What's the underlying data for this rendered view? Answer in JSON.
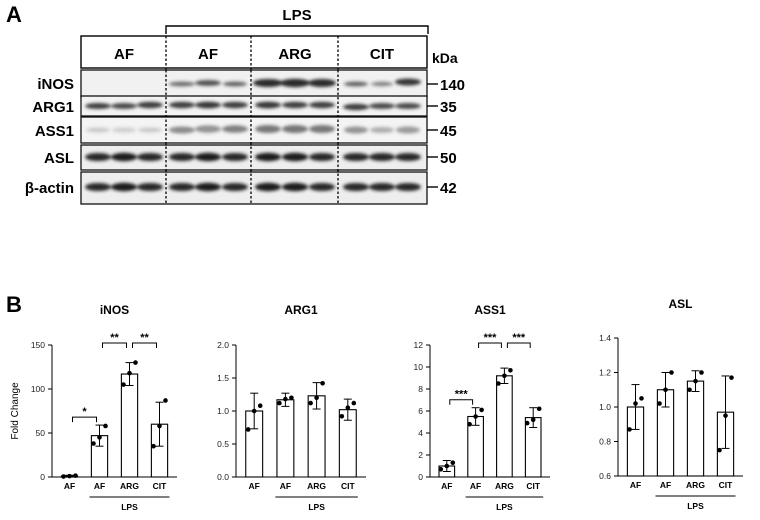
{
  "panel_a": {
    "letter": "A",
    "treatment_label": "LPS",
    "unit_label": "kDa",
    "groups": [
      "AF",
      "AF",
      "ARG",
      "CIT"
    ],
    "proteins": [
      {
        "name": "iNOS",
        "kda": "140"
      },
      {
        "name": "ARG1",
        "kda": "35"
      },
      {
        "name": "ASS1",
        "kda": "45"
      },
      {
        "name": "ASL",
        "kda": "50"
      },
      {
        "name": "β-actin",
        "kda": "42"
      }
    ]
  },
  "panel_b": {
    "letter": "B",
    "group_label": "LPS"
  },
  "chart_data": [
    {
      "type": "bar",
      "title": "iNOS",
      "ylabel": "Fold Change",
      "xlabel": "LPS",
      "categories": [
        "AF",
        "AF",
        "ARG",
        "CIT"
      ],
      "values": [
        1,
        47,
        117,
        60
      ],
      "error": [
        1,
        12,
        13,
        25
      ],
      "points": [
        [
          0.5,
          1,
          1.5
        ],
        [
          38,
          45,
          58
        ],
        [
          105,
          118,
          130
        ],
        [
          35,
          58,
          87
        ]
      ],
      "ylim": [
        0,
        150
      ],
      "yticks": [
        "0",
        "50",
        "100",
        "150"
      ],
      "significance": [
        {
          "from": 0,
          "to": 1,
          "label": "*"
        },
        {
          "from": 1,
          "to": 2,
          "label": "**"
        },
        {
          "from": 2,
          "to": 3,
          "label": "**"
        }
      ]
    },
    {
      "type": "bar",
      "title": "ARG1",
      "ylabel": "",
      "xlabel": "LPS",
      "categories": [
        "AF",
        "AF",
        "ARG",
        "CIT"
      ],
      "values": [
        1.0,
        1.17,
        1.23,
        1.02
      ],
      "error": [
        0.27,
        0.1,
        0.2,
        0.16
      ],
      "points": [
        [
          0.72,
          1.0,
          1.08
        ],
        [
          1.12,
          1.18,
          1.2
        ],
        [
          1.12,
          1.2,
          1.42
        ],
        [
          0.92,
          1.05,
          1.12
        ]
      ],
      "ylim": [
        0,
        2.0
      ],
      "yticks": [
        "0.0",
        "0.5",
        "1.0",
        "1.5",
        "2.0"
      ],
      "significance": []
    },
    {
      "type": "bar",
      "title": "ASS1",
      "ylabel": "",
      "xlabel": "LPS",
      "categories": [
        "AF",
        "AF",
        "ARG",
        "CIT"
      ],
      "values": [
        1.0,
        5.5,
        9.2,
        5.4
      ],
      "error": [
        0.5,
        0.8,
        0.7,
        0.9
      ],
      "points": [
        [
          0.7,
          1.0,
          1.3
        ],
        [
          4.8,
          5.5,
          6.1
        ],
        [
          8.5,
          9.2,
          9.7
        ],
        [
          4.9,
          5.2,
          6.2
        ]
      ],
      "ylim": [
        0,
        12
      ],
      "yticks": [
        "0",
        "2",
        "4",
        "6",
        "8",
        "10",
        "12"
      ],
      "significance": [
        {
          "from": 0,
          "to": 1,
          "label": "***"
        },
        {
          "from": 1,
          "to": 2,
          "label": "***"
        },
        {
          "from": 2,
          "to": 3,
          "label": "***"
        }
      ]
    },
    {
      "type": "bar",
      "title": "ASL",
      "ylabel": "",
      "xlabel": "LPS",
      "categories": [
        "AF",
        "AF",
        "ARG",
        "CIT"
      ],
      "values": [
        1.0,
        1.1,
        1.15,
        0.97
      ],
      "error": [
        0.13,
        0.1,
        0.06,
        0.21
      ],
      "points": [
        [
          0.87,
          1.02,
          1.05
        ],
        [
          1.02,
          1.1,
          1.2
        ],
        [
          1.1,
          1.15,
          1.2
        ],
        [
          0.75,
          0.95,
          1.17
        ]
      ],
      "ylim": [
        0.6,
        1.4
      ],
      "yticks": [
        "0.6",
        "0.8",
        "1.0",
        "1.2",
        "1.4"
      ],
      "significance": []
    }
  ]
}
